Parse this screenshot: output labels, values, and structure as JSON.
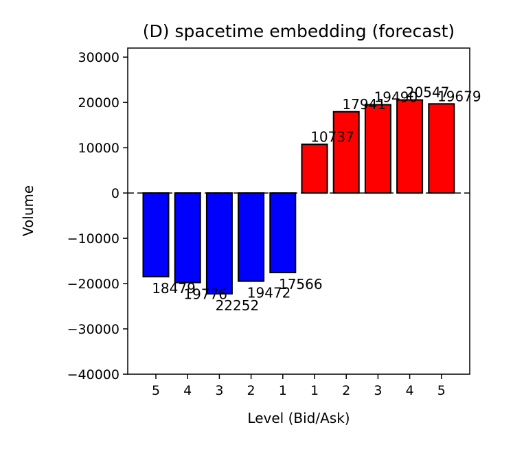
{
  "chart_data": {
    "type": "bar",
    "title": "(D) spacetime embedding (forecast)",
    "xlabel": "Level (Bid/Ask)",
    "ylabel": "Volume",
    "ylim": [
      -40000,
      32000
    ],
    "yticks": [
      -40000,
      -30000,
      -20000,
      -10000,
      0,
      10000,
      20000,
      30000
    ],
    "ytick_labels": [
      "−40000",
      "−30000",
      "−20000",
      "−10000",
      "0",
      "10000",
      "20000",
      "30000"
    ],
    "categories": [
      "5",
      "4",
      "3",
      "2",
      "1",
      "1",
      "2",
      "3",
      "4",
      "5"
    ],
    "values": [
      -18479,
      -19776,
      -22252,
      -19472,
      -17566,
      10737,
      17941,
      19490,
      20547,
      19679
    ],
    "value_labels": [
      "18479",
      "19776",
      "22252",
      "19472",
      "17566",
      "10737",
      "17941",
      "19490",
      "20547",
      "19679"
    ],
    "colors": {
      "bid": "#0000ff",
      "ask": "#ff0000",
      "edge": "#000000"
    },
    "grid": false,
    "zero_line": "dashed"
  }
}
